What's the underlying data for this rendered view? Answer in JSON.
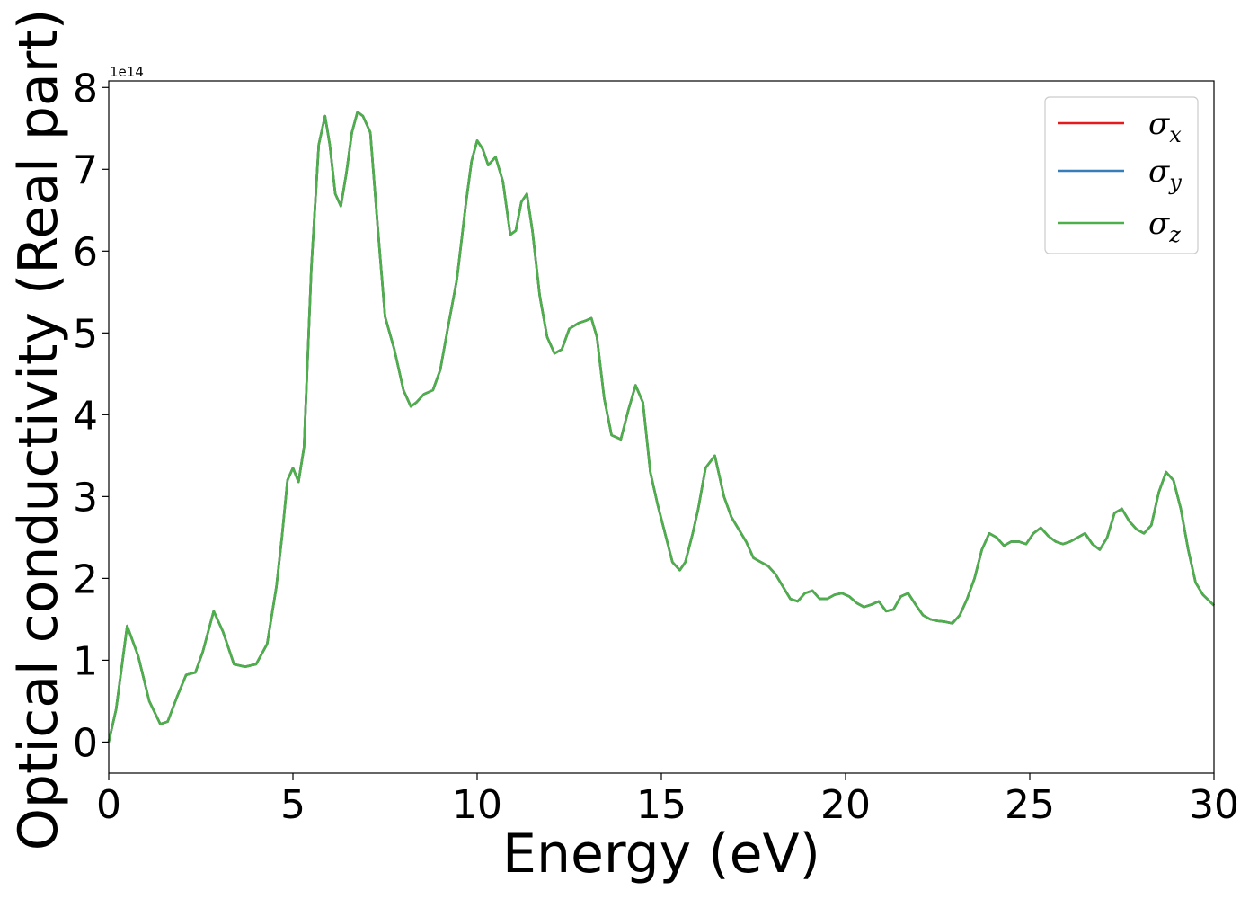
{
  "chart_data": {
    "type": "line",
    "xlabel": "Energy (eV)",
    "ylabel": "Optical conductivity (Real part)",
    "y_offset_label": "1e14",
    "y_scale": 100000000000000.0,
    "xlim": [
      0,
      30
    ],
    "ylim": [
      -0.38,
      8.08
    ],
    "xticks": [
      0,
      5,
      10,
      15,
      20,
      25,
      30
    ],
    "xtick_labels": [
      "0",
      "5",
      "10",
      "15",
      "20",
      "25",
      "30"
    ],
    "yticks": [
      0,
      1,
      2,
      3,
      4,
      5,
      6,
      7,
      8
    ],
    "ytick_labels": [
      "0",
      "1",
      "2",
      "3",
      "4",
      "5",
      "6",
      "7",
      "8"
    ],
    "grid": false,
    "legend_position": "top-right",
    "x": [
      0,
      0.2,
      0.5,
      0.8,
      1.1,
      1.4,
      1.6,
      1.85,
      2.1,
      2.35,
      2.55,
      2.85,
      3.1,
      3.4,
      3.7,
      4.0,
      4.3,
      4.55,
      4.7,
      4.85,
      5.0,
      5.15,
      5.3,
      5.5,
      5.7,
      5.87,
      6.0,
      6.15,
      6.3,
      6.45,
      6.6,
      6.75,
      6.9,
      7.1,
      7.3,
      7.5,
      7.75,
      8.0,
      8.2,
      8.35,
      8.55,
      8.8,
      9.0,
      9.2,
      9.45,
      9.7,
      9.85,
      10.0,
      10.15,
      10.3,
      10.5,
      10.7,
      10.9,
      11.05,
      11.2,
      11.35,
      11.5,
      11.7,
      11.9,
      12.1,
      12.3,
      12.5,
      12.75,
      12.95,
      13.1,
      13.25,
      13.45,
      13.65,
      13.9,
      14.1,
      14.3,
      14.5,
      14.7,
      14.9,
      15.1,
      15.3,
      15.5,
      15.65,
      15.85,
      16.0,
      16.2,
      16.45,
      16.7,
      16.9,
      17.1,
      17.3,
      17.5,
      17.7,
      17.9,
      18.1,
      18.3,
      18.5,
      18.7,
      18.9,
      19.1,
      19.3,
      19.5,
      19.7,
      19.9,
      20.1,
      20.3,
      20.5,
      20.7,
      20.9,
      21.1,
      21.3,
      21.5,
      21.7,
      21.9,
      22.1,
      22.3,
      22.5,
      22.7,
      22.9,
      23.1,
      23.3,
      23.5,
      23.7,
      23.9,
      24.1,
      24.3,
      24.5,
      24.7,
      24.9,
      25.1,
      25.3,
      25.5,
      25.7,
      25.9,
      26.1,
      26.3,
      26.5,
      26.7,
      26.9,
      27.1,
      27.3,
      27.5,
      27.7,
      27.9,
      28.1,
      28.3,
      28.5,
      28.7,
      28.9,
      29.1,
      29.3,
      29.5,
      29.7,
      30.0
    ],
    "series": [
      {
        "name": "σx",
        "color": "#e41a1c",
        "values": [
          0.0,
          0.4,
          1.42,
          1.05,
          0.5,
          0.22,
          0.25,
          0.55,
          0.82,
          0.85,
          1.1,
          1.6,
          1.35,
          0.95,
          0.92,
          0.95,
          1.2,
          1.9,
          2.5,
          3.2,
          3.35,
          3.18,
          3.6,
          5.8,
          7.3,
          7.65,
          7.3,
          6.7,
          6.55,
          6.95,
          7.45,
          7.7,
          7.65,
          7.45,
          6.3,
          5.2,
          4.8,
          4.3,
          4.1,
          4.15,
          4.25,
          4.3,
          4.55,
          5.05,
          5.65,
          6.6,
          7.1,
          7.35,
          7.25,
          7.05,
          7.15,
          6.85,
          6.2,
          6.25,
          6.6,
          6.7,
          6.25,
          5.45,
          4.95,
          4.75,
          4.8,
          5.05,
          5.12,
          5.15,
          5.18,
          4.95,
          4.2,
          3.75,
          3.7,
          4.05,
          4.36,
          4.15,
          3.3,
          2.9,
          2.55,
          2.2,
          2.1,
          2.2,
          2.55,
          2.85,
          3.35,
          3.5,
          3.0,
          2.75,
          2.6,
          2.45,
          2.25,
          2.2,
          2.15,
          2.05,
          1.9,
          1.75,
          1.72,
          1.82,
          1.85,
          1.75,
          1.75,
          1.8,
          1.82,
          1.78,
          1.7,
          1.65,
          1.68,
          1.72,
          1.6,
          1.62,
          1.78,
          1.82,
          1.68,
          1.55,
          1.5,
          1.48,
          1.47,
          1.45,
          1.55,
          1.75,
          2.0,
          2.35,
          2.55,
          2.5,
          2.4,
          2.45,
          2.45,
          2.42,
          2.55,
          2.62,
          2.52,
          2.45,
          2.42,
          2.45,
          2.5,
          2.55,
          2.42,
          2.35,
          2.5,
          2.8,
          2.85,
          2.7,
          2.6,
          2.55,
          2.65,
          3.05,
          3.3,
          3.2,
          2.85,
          2.35,
          1.95,
          1.8,
          1.67
        ]
      },
      {
        "name": "σy",
        "color": "#377eb8",
        "values": [
          0.0,
          0.4,
          1.42,
          1.05,
          0.5,
          0.22,
          0.25,
          0.55,
          0.82,
          0.85,
          1.1,
          1.6,
          1.35,
          0.95,
          0.92,
          0.95,
          1.2,
          1.9,
          2.5,
          3.2,
          3.35,
          3.18,
          3.6,
          5.8,
          7.3,
          7.65,
          7.3,
          6.7,
          6.55,
          6.95,
          7.45,
          7.7,
          7.65,
          7.45,
          6.3,
          5.2,
          4.8,
          4.3,
          4.1,
          4.15,
          4.25,
          4.3,
          4.55,
          5.05,
          5.65,
          6.6,
          7.1,
          7.35,
          7.25,
          7.05,
          7.15,
          6.85,
          6.2,
          6.25,
          6.6,
          6.7,
          6.25,
          5.45,
          4.95,
          4.75,
          4.8,
          5.05,
          5.12,
          5.15,
          5.18,
          4.95,
          4.2,
          3.75,
          3.7,
          4.05,
          4.36,
          4.15,
          3.3,
          2.9,
          2.55,
          2.2,
          2.1,
          2.2,
          2.55,
          2.85,
          3.35,
          3.5,
          3.0,
          2.75,
          2.6,
          2.45,
          2.25,
          2.2,
          2.15,
          2.05,
          1.9,
          1.75,
          1.72,
          1.82,
          1.85,
          1.75,
          1.75,
          1.8,
          1.82,
          1.78,
          1.7,
          1.65,
          1.68,
          1.72,
          1.6,
          1.62,
          1.78,
          1.82,
          1.68,
          1.55,
          1.5,
          1.48,
          1.47,
          1.45,
          1.55,
          1.75,
          2.0,
          2.35,
          2.55,
          2.5,
          2.4,
          2.45,
          2.45,
          2.42,
          2.55,
          2.62,
          2.52,
          2.45,
          2.42,
          2.45,
          2.5,
          2.55,
          2.42,
          2.35,
          2.5,
          2.8,
          2.85,
          2.7,
          2.6,
          2.55,
          2.65,
          3.05,
          3.3,
          3.2,
          2.85,
          2.35,
          1.95,
          1.8,
          1.67
        ]
      },
      {
        "name": "σz",
        "color": "#4daf4a",
        "values": [
          0.0,
          0.4,
          1.42,
          1.05,
          0.5,
          0.22,
          0.25,
          0.55,
          0.82,
          0.85,
          1.1,
          1.6,
          1.35,
          0.95,
          0.92,
          0.95,
          1.2,
          1.9,
          2.5,
          3.2,
          3.35,
          3.18,
          3.6,
          5.8,
          7.3,
          7.65,
          7.3,
          6.7,
          6.55,
          6.95,
          7.45,
          7.7,
          7.65,
          7.45,
          6.3,
          5.2,
          4.8,
          4.3,
          4.1,
          4.15,
          4.25,
          4.3,
          4.55,
          5.05,
          5.65,
          6.6,
          7.1,
          7.35,
          7.25,
          7.05,
          7.15,
          6.85,
          6.2,
          6.25,
          6.6,
          6.7,
          6.25,
          5.45,
          4.95,
          4.75,
          4.8,
          5.05,
          5.12,
          5.15,
          5.18,
          4.95,
          4.2,
          3.75,
          3.7,
          4.05,
          4.36,
          4.15,
          3.3,
          2.9,
          2.55,
          2.2,
          2.1,
          2.2,
          2.55,
          2.85,
          3.35,
          3.5,
          3.0,
          2.75,
          2.6,
          2.45,
          2.25,
          2.2,
          2.15,
          2.05,
          1.9,
          1.75,
          1.72,
          1.82,
          1.85,
          1.75,
          1.75,
          1.8,
          1.82,
          1.78,
          1.7,
          1.65,
          1.68,
          1.72,
          1.6,
          1.62,
          1.78,
          1.82,
          1.68,
          1.55,
          1.5,
          1.48,
          1.47,
          1.45,
          1.55,
          1.75,
          2.0,
          2.35,
          2.55,
          2.5,
          2.4,
          2.45,
          2.45,
          2.42,
          2.55,
          2.62,
          2.52,
          2.45,
          2.42,
          2.45,
          2.5,
          2.55,
          2.42,
          2.35,
          2.5,
          2.8,
          2.85,
          2.7,
          2.6,
          2.55,
          2.65,
          3.05,
          3.3,
          3.2,
          2.85,
          2.35,
          1.95,
          1.8,
          1.67
        ]
      }
    ],
    "legend": [
      {
        "symbol": "σ",
        "subscript": "x",
        "color": "#e41a1c"
      },
      {
        "symbol": "σ",
        "subscript": "y",
        "color": "#377eb8"
      },
      {
        "symbol": "σ",
        "subscript": "z",
        "color": "#4daf4a"
      }
    ]
  }
}
